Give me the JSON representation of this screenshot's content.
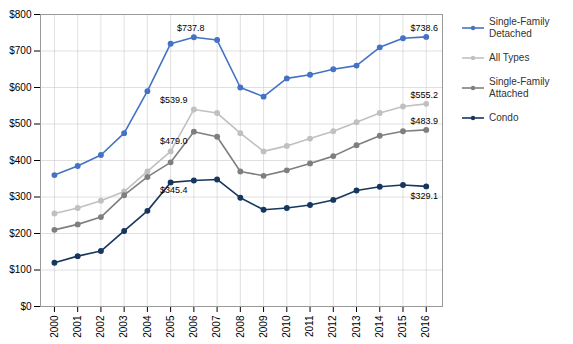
{
  "chart_data": {
    "type": "line",
    "x": [
      2000,
      2001,
      2002,
      2003,
      2004,
      2005,
      2006,
      2007,
      2008,
      2009,
      2010,
      2011,
      2012,
      2013,
      2014,
      2015,
      2016
    ],
    "series": [
      {
        "name": "Single-Family\nDetached",
        "color": "#4472C4",
        "marker": "circle",
        "values": [
          360,
          385,
          415,
          475,
          590,
          720,
          737.8,
          730,
          600,
          575,
          625,
          635,
          650,
          660,
          710,
          735,
          738.6
        ]
      },
      {
        "name": "All Types",
        "color": "#C0C0C0",
        "marker": "circle",
        "values": [
          255,
          270,
          290,
          315,
          370,
          425,
          539.9,
          530,
          475,
          425,
          440,
          460,
          480,
          505,
          530,
          548,
          555.2
        ]
      },
      {
        "name": "Single-Family\nAttached",
        "color": "#7F7F7F",
        "marker": "circle",
        "values": [
          210,
          225,
          245,
          305,
          355,
          395,
          479.0,
          465,
          370,
          358,
          373,
          392,
          412,
          442,
          468,
          480,
          483.9
        ]
      },
      {
        "name": "Condo",
        "color": "#17375E",
        "marker": "circle",
        "values": [
          120,
          138,
          152,
          207,
          262,
          340,
          345.4,
          348,
          298,
          265,
          270,
          278,
          292,
          318,
          328,
          333,
          329.1
        ]
      }
    ],
    "annotations": [
      {
        "text": "$737.8",
        "x": 2006,
        "y": 737.8
      },
      {
        "text": "$539.9",
        "x": 2006,
        "y": 539.9
      },
      {
        "text": "$479.0",
        "x": 2006,
        "y": 479.0
      },
      {
        "text": "$345.4",
        "x": 2006,
        "y": 345.4
      },
      {
        "text": "$738.6",
        "x": 2016,
        "y": 738.6
      },
      {
        "text": "$555.2",
        "x": 2016,
        "y": 555.2
      },
      {
        "text": "$483.9",
        "x": 2016,
        "y": 483.9
      },
      {
        "text": "$329.1",
        "x": 2016,
        "y": 329.1
      }
    ],
    "xlim": [
      1999.4,
      2016.7
    ],
    "xticks": [
      2000,
      2001,
      2002,
      2003,
      2004,
      2005,
      2006,
      2007,
      2008,
      2009,
      2010,
      2011,
      2012,
      2013,
      2014,
      2015,
      2016
    ],
    "ylim": [
      0,
      800
    ],
    "yticks": [
      {
        "value": 0,
        "label": "$0"
      },
      {
        "value": 100,
        "label": "$100"
      },
      {
        "value": 200,
        "label": "$200"
      },
      {
        "value": 300,
        "label": "$300"
      },
      {
        "value": 400,
        "label": "$400"
      },
      {
        "value": 500,
        "label": "$500"
      },
      {
        "value": 600,
        "label": "$600"
      },
      {
        "value": 700,
        "label": "$700"
      },
      {
        "value": 800,
        "label": "$800"
      }
    ],
    "grid": true,
    "legend": "right"
  }
}
